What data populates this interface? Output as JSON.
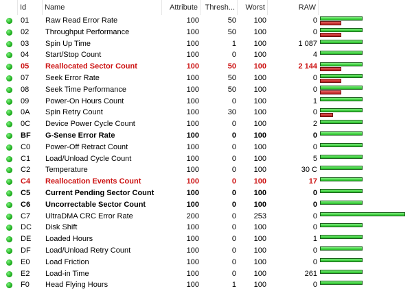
{
  "header": {
    "id": "Id",
    "name": "Name",
    "attribute": "Attribute",
    "threshold": "Thresh...",
    "worst": "Worst",
    "raw": "RAW"
  },
  "rows": [
    {
      "id": "01",
      "name": "Raw Read Error Rate",
      "attr": "100",
      "thr": "50",
      "worst": "100",
      "raw": "0",
      "green": 1.0,
      "red": 0.5,
      "style": "normal"
    },
    {
      "id": "02",
      "name": "Throughput Performance",
      "attr": "100",
      "thr": "50",
      "worst": "100",
      "raw": "0",
      "green": 1.0,
      "red": 0.5,
      "style": "normal"
    },
    {
      "id": "03",
      "name": "Spin Up Time",
      "attr": "100",
      "thr": "1",
      "worst": "100",
      "raw": "1 087",
      "green": 1.0,
      "red": 0,
      "style": "normal"
    },
    {
      "id": "04",
      "name": "Start/Stop Count",
      "attr": "100",
      "thr": "0",
      "worst": "100",
      "raw": "4",
      "green": 1.0,
      "red": 0,
      "style": "normal"
    },
    {
      "id": "05",
      "name": "Reallocated Sector Count",
      "attr": "100",
      "thr": "50",
      "worst": "100",
      "raw": "2 144",
      "green": 1.0,
      "red": 0.5,
      "style": "crit"
    },
    {
      "id": "07",
      "name": "Seek Error Rate",
      "attr": "100",
      "thr": "50",
      "worst": "100",
      "raw": "0",
      "green": 1.0,
      "red": 0.5,
      "style": "normal"
    },
    {
      "id": "08",
      "name": "Seek Time Performance",
      "attr": "100",
      "thr": "50",
      "worst": "100",
      "raw": "0",
      "green": 1.0,
      "red": 0.5,
      "style": "normal"
    },
    {
      "id": "09",
      "name": "Power-On Hours Count",
      "attr": "100",
      "thr": "0",
      "worst": "100",
      "raw": "1",
      "green": 1.0,
      "red": 0,
      "style": "normal"
    },
    {
      "id": "0A",
      "name": "Spin Retry Count",
      "attr": "100",
      "thr": "30",
      "worst": "100",
      "raw": "0",
      "green": 1.0,
      "red": 0.3,
      "style": "normal"
    },
    {
      "id": "0C",
      "name": "Device Power Cycle Count",
      "attr": "100",
      "thr": "0",
      "worst": "100",
      "raw": "2",
      "green": 1.0,
      "red": 0,
      "style": "normal"
    },
    {
      "id": "BF",
      "name": "G-Sense Error Rate",
      "attr": "100",
      "thr": "0",
      "worst": "100",
      "raw": "0",
      "green": 1.0,
      "red": 0,
      "style": "bold"
    },
    {
      "id": "C0",
      "name": "Power-Off Retract Count",
      "attr": "100",
      "thr": "0",
      "worst": "100",
      "raw": "0",
      "green": 1.0,
      "red": 0,
      "style": "normal"
    },
    {
      "id": "C1",
      "name": "Load/Unload Cycle Count",
      "attr": "100",
      "thr": "0",
      "worst": "100",
      "raw": "5",
      "green": 1.0,
      "red": 0,
      "style": "normal"
    },
    {
      "id": "C2",
      "name": "Temperature",
      "attr": "100",
      "thr": "0",
      "worst": "100",
      "raw": "30 C",
      "green": 1.0,
      "red": 0,
      "style": "normal"
    },
    {
      "id": "C4",
      "name": "Reallocation Events Count",
      "attr": "100",
      "thr": "0",
      "worst": "100",
      "raw": "17",
      "green": 1.0,
      "red": 0,
      "style": "crit"
    },
    {
      "id": "C5",
      "name": "Current Pending Sector Count",
      "attr": "100",
      "thr": "0",
      "worst": "100",
      "raw": "0",
      "green": 1.0,
      "red": 0,
      "style": "bold"
    },
    {
      "id": "C6",
      "name": "Uncorrectable Sector Count",
      "attr": "100",
      "thr": "0",
      "worst": "100",
      "raw": "0",
      "green": 1.0,
      "red": 0,
      "style": "bold"
    },
    {
      "id": "C7",
      "name": "UltraDMA CRC Error Rate",
      "attr": "200",
      "thr": "0",
      "worst": "253",
      "raw": "0",
      "green": 2.0,
      "red": 0,
      "style": "normal"
    },
    {
      "id": "DC",
      "name": "Disk Shift",
      "attr": "100",
      "thr": "0",
      "worst": "100",
      "raw": "0",
      "green": 1.0,
      "red": 0,
      "style": "normal"
    },
    {
      "id": "DE",
      "name": "Loaded Hours",
      "attr": "100",
      "thr": "0",
      "worst": "100",
      "raw": "1",
      "green": 1.0,
      "red": 0,
      "style": "normal"
    },
    {
      "id": "DF",
      "name": "Load/Unload Retry Count",
      "attr": "100",
      "thr": "0",
      "worst": "100",
      "raw": "0",
      "green": 1.0,
      "red": 0,
      "style": "normal"
    },
    {
      "id": "E0",
      "name": "Load Friction",
      "attr": "100",
      "thr": "0",
      "worst": "100",
      "raw": "0",
      "green": 1.0,
      "red": 0,
      "style": "normal"
    },
    {
      "id": "E2",
      "name": "Load-in Time",
      "attr": "100",
      "thr": "0",
      "worst": "100",
      "raw": "261",
      "green": 1.0,
      "red": 0,
      "style": "normal"
    },
    {
      "id": "F0",
      "name": "Head Flying Hours",
      "attr": "100",
      "thr": "1",
      "worst": "100",
      "raw": "0",
      "green": 1.0,
      "red": 0,
      "style": "normal"
    }
  ],
  "colors": {
    "status_ok": "#12a312",
    "critical": "#cc1111",
    "bar_green": "#22bb22",
    "bar_red": "#b51c1c"
  },
  "icons": {
    "status": "status-ok-dot-icon"
  }
}
